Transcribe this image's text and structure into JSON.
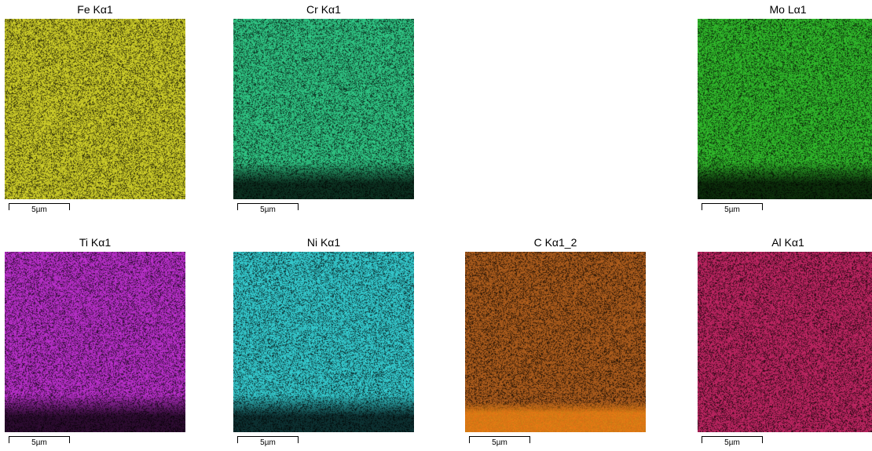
{
  "maps": [
    {
      "key": "fe",
      "title": "Fe Kα1",
      "scale_label": "5µm",
      "color": "#c8c828",
      "bottom_band": "none"
    },
    {
      "key": "cr",
      "title": "Cr Kα1",
      "scale_label": "5µm",
      "color": "#2ebf80",
      "bottom_band": "dark"
    },
    {
      "key": "mo",
      "title": "Mo Lα1",
      "scale_label": "5µm",
      "color": "#2fb52a",
      "bottom_band": "dark"
    },
    {
      "key": "ti",
      "title": "Ti Kα1",
      "scale_label": "5µm",
      "color": "#b32ec4",
      "bottom_band": "dark"
    },
    {
      "key": "ni",
      "title": "Ni Kα1",
      "scale_label": "5µm",
      "color": "#33c4c8",
      "bottom_band": "dark"
    },
    {
      "key": "c",
      "title": "C Kα1_2",
      "scale_label": "5µm",
      "color": "#a85a1c",
      "bottom_band": "bright"
    },
    {
      "key": "al",
      "title": "Al Kα1",
      "scale_label": "5µm",
      "color": "#b8245f",
      "bottom_band": "none"
    }
  ]
}
